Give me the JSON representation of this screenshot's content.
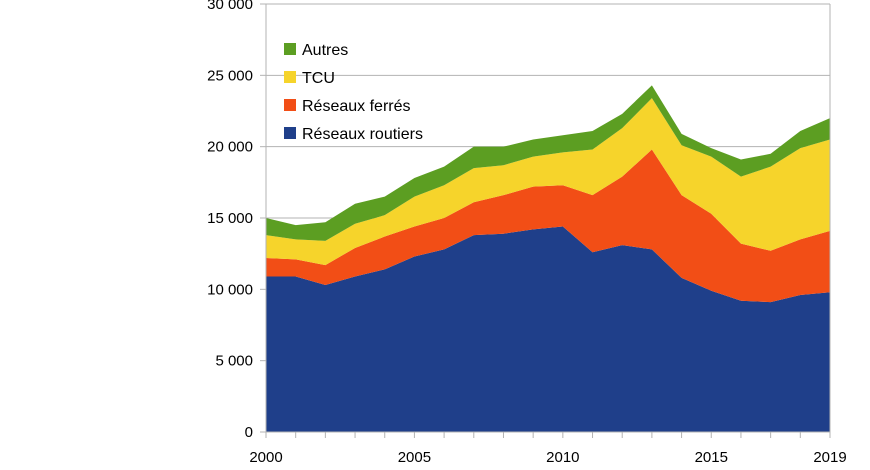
{
  "chart_data": {
    "type": "area",
    "stacked": true,
    "x": [
      2000,
      2001,
      2002,
      2003,
      2004,
      2005,
      2006,
      2007,
      2008,
      2009,
      2010,
      2011,
      2012,
      2013,
      2014,
      2015,
      2016,
      2017,
      2018,
      2019
    ],
    "xticks": [
      "2000",
      "2005",
      "2010",
      "2015",
      "2019"
    ],
    "xtick_values": [
      2000,
      2005,
      2010,
      2015,
      2019
    ],
    "xlim": [
      2000,
      2019
    ],
    "ylim": [
      0,
      30000
    ],
    "yticks": [
      "0",
      "5 000",
      "10 000",
      "15 000",
      "20 000",
      "25 000",
      "30 000"
    ],
    "ytick_values": [
      0,
      5000,
      10000,
      15000,
      20000,
      25000,
      30000
    ],
    "grid": "horizontal",
    "legend_position": "top-left",
    "series": [
      {
        "name": "Réseaux routiers",
        "color": "#1f3f8a",
        "values": [
          10900,
          10900,
          10300,
          10900,
          11400,
          12300,
          12800,
          13800,
          13900,
          14200,
          14400,
          12600,
          13100,
          12800,
          10800,
          9900,
          9200,
          9100,
          9600,
          9800
        ]
      },
      {
        "name": "Réseaux ferrés",
        "color": "#f24e16",
        "values": [
          1300,
          1200,
          1400,
          2000,
          2300,
          2100,
          2200,
          2300,
          2700,
          3000,
          2900,
          4000,
          4800,
          7000,
          5800,
          5400,
          4000,
          3600,
          3900,
          4300
        ]
      },
      {
        "name": "TCU",
        "color": "#f6d42b",
        "values": [
          1600,
          1400,
          1700,
          1700,
          1500,
          2100,
          2300,
          2400,
          2100,
          2100,
          2300,
          3200,
          3400,
          3600,
          3500,
          4000,
          4700,
          5900,
          6400,
          6400
        ]
      },
      {
        "name": "Autres",
        "color": "#5c9e22",
        "values": [
          1200,
          1000,
          1300,
          1400,
          1300,
          1300,
          1300,
          1500,
          1300,
          1200,
          1200,
          1300,
          1000,
          900,
          800,
          600,
          1200,
          900,
          1200,
          1500
        ]
      }
    ]
  }
}
